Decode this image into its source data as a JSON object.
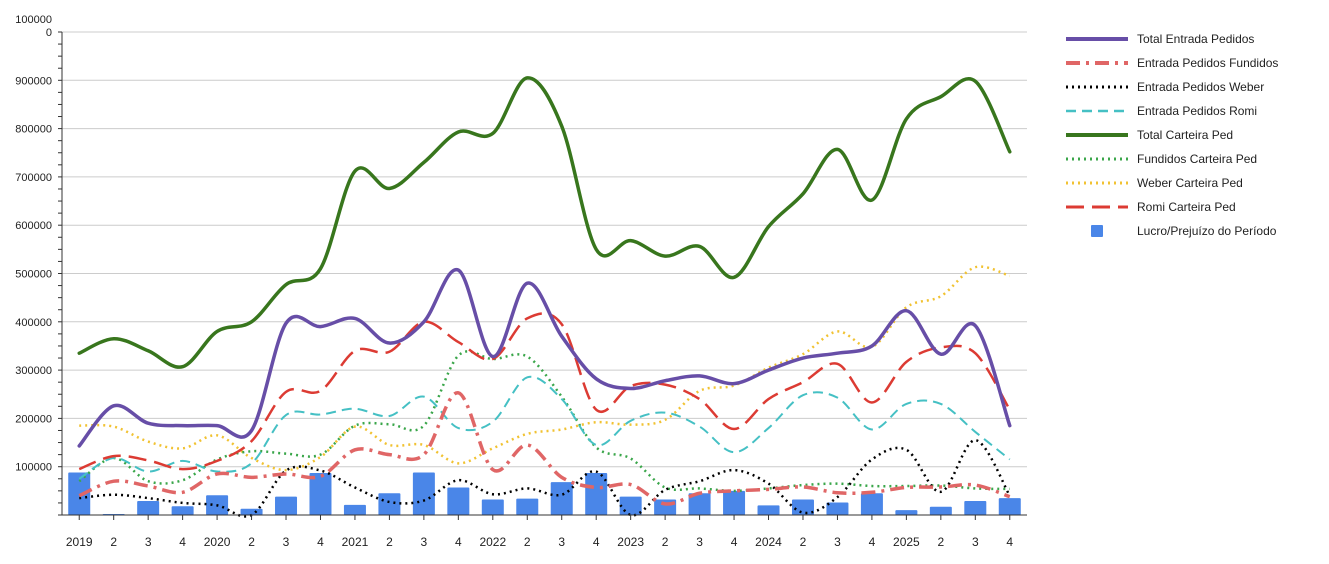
{
  "chart_data": {
    "type": "line",
    "title": "",
    "xlabel": "",
    "ylabel": "",
    "ylim": [
      0,
      1000000
    ],
    "y_ticks": [
      "100000",
      "200000",
      "300000",
      "400000",
      "500000",
      "600000",
      "700000",
      "800000",
      "900000",
      "100000\n0"
    ],
    "y_tick_values": [
      100000,
      200000,
      300000,
      400000,
      500000,
      600000,
      700000,
      800000,
      900000,
      1000000
    ],
    "grid": true,
    "legend_position": "right",
    "categories": [
      "2019",
      "2",
      "3",
      "4",
      "2020",
      "2",
      "3",
      "4",
      "2021",
      "2",
      "3",
      "4",
      "2022",
      "2",
      "3",
      "4",
      "2023",
      "2",
      "3",
      "4",
      "2024",
      "2",
      "3",
      "4",
      "2025",
      "2",
      "3",
      "4"
    ],
    "series": [
      {
        "name": "Total Entrada Pedidos",
        "kind": "line",
        "style": "solid",
        "color": "#674ea7",
        "values": [
          143000,
          226000,
          190000,
          185000,
          185000,
          175000,
          397000,
          390000,
          407000,
          356000,
          400000,
          507000,
          328000,
          480000,
          370000,
          282000,
          262000,
          278000,
          288000,
          272000,
          300000,
          325000,
          335000,
          350000,
          423000,
          333000,
          392000,
          185000
        ]
      },
      {
        "name": "Entrada Pedidos Fundidos",
        "kind": "line",
        "style": "dashdot",
        "color": "#e06666",
        "values": [
          40000,
          70000,
          60000,
          47000,
          85000,
          78000,
          85000,
          80000,
          135000,
          125000,
          125000,
          253000,
          94000,
          145000,
          78000,
          57000,
          63000,
          23000,
          45000,
          50000,
          53000,
          58000,
          46000,
          47000,
          57000,
          58000,
          62000,
          38000
        ]
      },
      {
        "name": "Entrada Pedidos Weber",
        "kind": "line",
        "style": "dotted",
        "color": "#000000",
        "values": [
          35000,
          42000,
          35000,
          25000,
          20000,
          0,
          92000,
          92000,
          57000,
          27000,
          30000,
          72000,
          43000,
          55000,
          42000,
          90000,
          0,
          52000,
          70000,
          93000,
          65000,
          5000,
          37000,
          115000,
          135000,
          48000,
          155000,
          40000
        ]
      },
      {
        "name": "Entrada Pedidos Romi",
        "kind": "line",
        "style": "dashed",
        "color": "#45c0c4",
        "values": [
          75000,
          118000,
          90000,
          112000,
          90000,
          107000,
          207000,
          208000,
          220000,
          205000,
          245000,
          180000,
          193000,
          285000,
          240000,
          145000,
          195000,
          212000,
          183000,
          130000,
          180000,
          248000,
          243000,
          177000,
          230000,
          230000,
          172000,
          115000
        ]
      },
      {
        "name": "Total Carteira Ped",
        "kind": "line",
        "style": "solid",
        "color": "#38761d",
        "values": [
          335000,
          365000,
          340000,
          307000,
          380000,
          400000,
          477000,
          510000,
          712000,
          676000,
          730000,
          793000,
          790000,
          905000,
          805000,
          550000,
          568000,
          536000,
          556000,
          492000,
          597000,
          665000,
          757000,
          652000,
          820000,
          866000,
          898000,
          752000
        ]
      },
      {
        "name": "Fundidos Carteira Ped",
        "kind": "line",
        "style": "dotted",
        "color": "#3aa64a",
        "values": [
          70000,
          118000,
          70000,
          72000,
          115000,
          132000,
          127000,
          125000,
          185000,
          188000,
          185000,
          330000,
          323000,
          328000,
          245000,
          140000,
          117000,
          57000,
          55000,
          50000,
          55000,
          62000,
          65000,
          60000,
          60000,
          61000,
          55000,
          54000
        ]
      },
      {
        "name": "Weber Carteira Ped",
        "kind": "line",
        "style": "dotted",
        "color": "#f1c232",
        "values": [
          185000,
          183000,
          152000,
          138000,
          165000,
          118000,
          93000,
          120000,
          183000,
          145000,
          145000,
          107000,
          138000,
          168000,
          177000,
          192000,
          187000,
          197000,
          257000,
          268000,
          305000,
          333000,
          380000,
          348000,
          430000,
          453000,
          513000,
          495000
        ]
      },
      {
        "name": "Romi Carteira Ped",
        "kind": "line",
        "style": "longdash",
        "color": "#dc3b33",
        "values": [
          95000,
          122000,
          113000,
          95000,
          112000,
          153000,
          255000,
          257000,
          340000,
          338000,
          400000,
          358000,
          323000,
          407000,
          395000,
          218000,
          267000,
          270000,
          240000,
          178000,
          240000,
          275000,
          313000,
          233000,
          317000,
          347000,
          335000,
          218000
        ]
      },
      {
        "name": "Lucro/Prejuízo do Período",
        "kind": "bar",
        "color": "#4a86e8",
        "values": [
          88000,
          0,
          29000,
          18000,
          41000,
          13000,
          38000,
          87000,
          21000,
          45000,
          88000,
          57000,
          32000,
          34000,
          68000,
          87000,
          38000,
          32000,
          45000,
          50000,
          20000,
          32000,
          26000,
          45000,
          10000,
          17000,
          29000,
          35000
        ]
      }
    ]
  }
}
